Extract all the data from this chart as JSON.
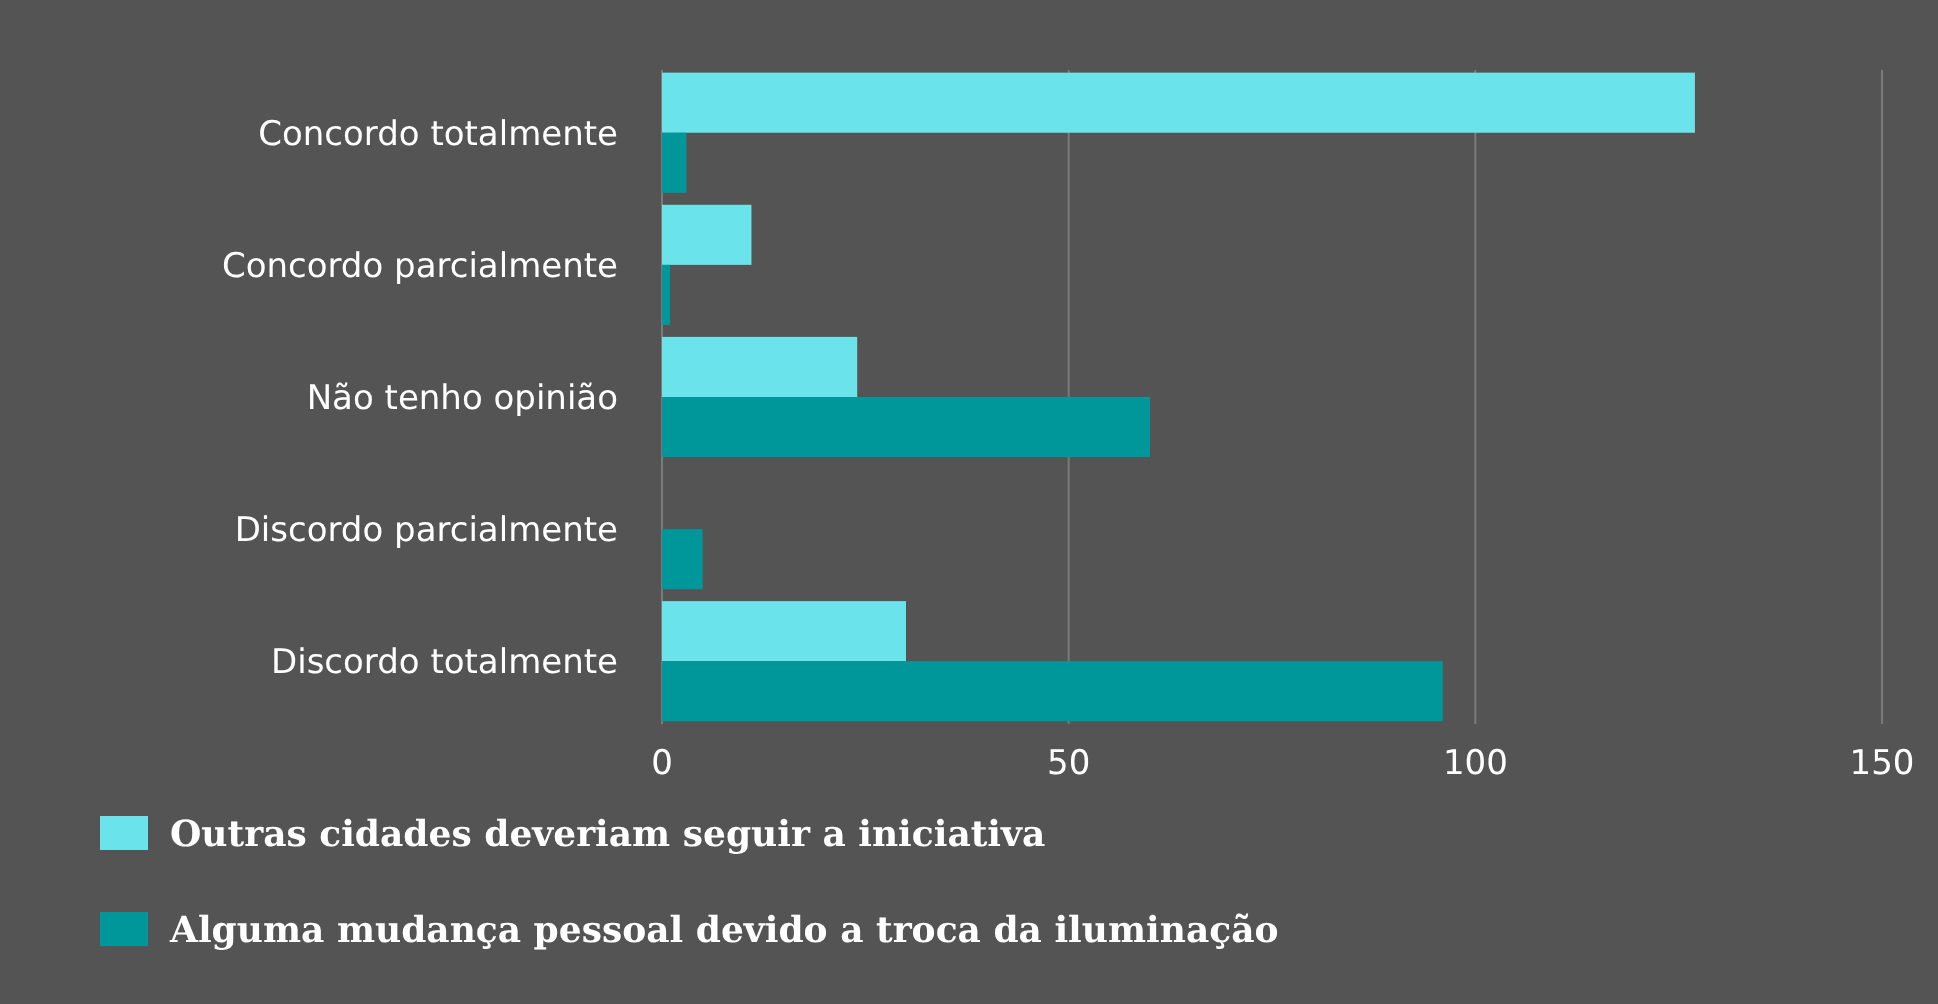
{
  "chart_data": {
    "type": "bar",
    "orientation": "horizontal",
    "categories": [
      "Concordo totalmente",
      "Concordo parcialmente",
      "Não tenho opinião",
      "Discordo parcialmente",
      "Discordo totalmente"
    ],
    "series": [
      {
        "name": "Outras cidades deveriam seguir a iniciativa",
        "color": "#6ae4ea",
        "values": [
          127,
          11,
          24,
          0,
          30
        ]
      },
      {
        "name": "Alguma mudança pessoal devido a troca da iluminação",
        "color": "#00979a",
        "values": [
          3,
          1,
          60,
          5,
          96
        ]
      }
    ],
    "xlim": [
      0,
      150
    ],
    "xticks": [
      0,
      50,
      100,
      150
    ],
    "grid": "x",
    "legend": "bottom"
  }
}
